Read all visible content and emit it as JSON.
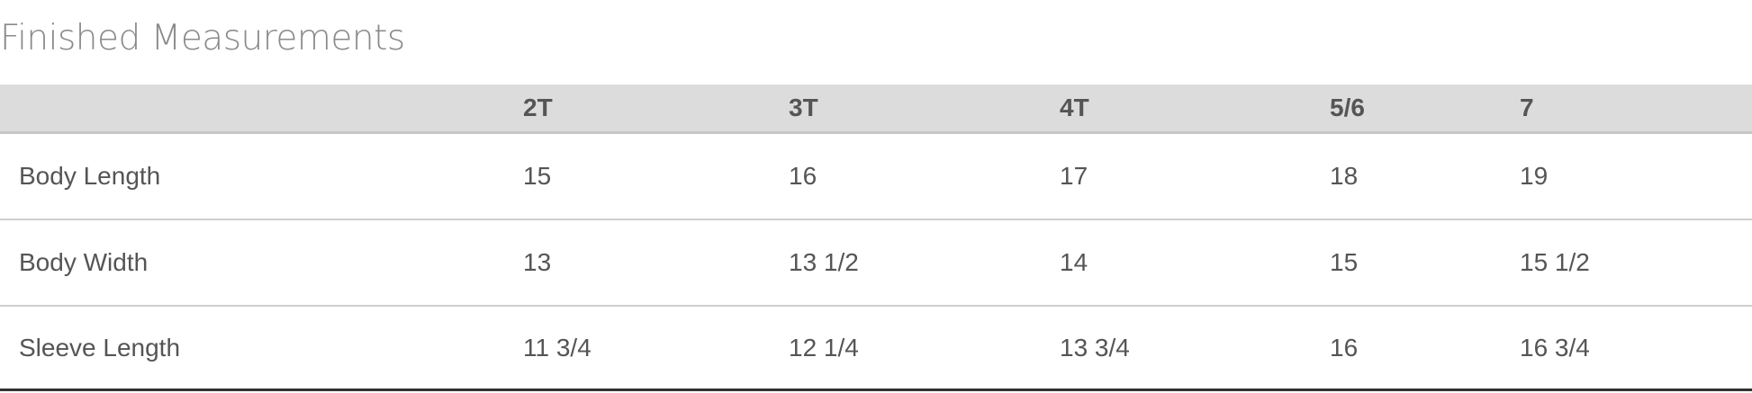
{
  "title": "Finished Measurements",
  "table": {
    "headers": [
      "",
      "2T",
      "3T",
      "4T",
      "5/6",
      "7"
    ],
    "rows": [
      {
        "label": "Body Length",
        "values": [
          "15",
          "16",
          "17",
          "18",
          "19"
        ]
      },
      {
        "label": "Body Width",
        "values": [
          "13",
          "13 1/2",
          "14",
          "15",
          "15 1/2"
        ]
      },
      {
        "label": "Sleeve Length",
        "values": [
          "11 3/4",
          "12 1/4",
          "13 3/4",
          "16",
          "16 3/4"
        ]
      }
    ]
  }
}
